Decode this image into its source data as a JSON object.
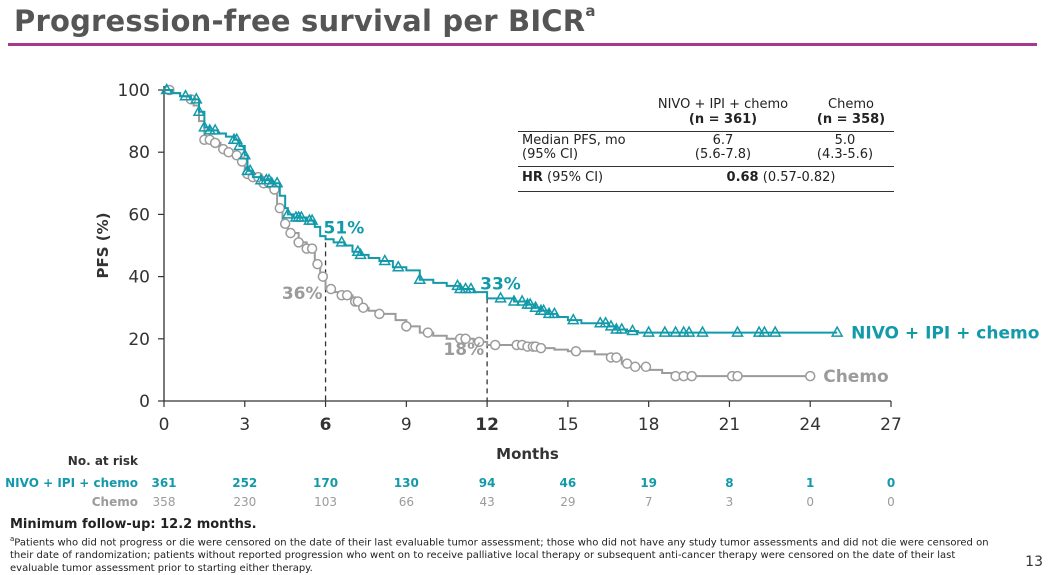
{
  "page": {
    "title": "Progression-free survival per BICR",
    "title_superscript": "a",
    "page_number": "13",
    "footer_bold": "Minimum follow-up: 12.2 months.",
    "footnote_marker": "a",
    "footnote": "Patients who did not progress or die were censored on the date of their last evaluable tumor assessment; those who did not have any study tumor assessments and did not die were censored on their date of randomization; patients without reported progression who went on to receive palliative local therapy or subsequent anti-cancer therapy were censored on the date of their last evaluable tumor assessment prior to starting either therapy.",
    "accent_color": "#a8388f"
  },
  "table": {
    "col1_header": [
      "NIVO + IPI + chemo",
      "(n = 361)"
    ],
    "col2_header": [
      "Chemo",
      "(n = 358)"
    ],
    "row1_label": [
      "Median PFS, mo",
      "(95% CI)"
    ],
    "row1_col1": [
      "6.7",
      "(5.6-7.8)"
    ],
    "row1_col2": [
      "5.0",
      "(4.3-5.6)"
    ],
    "row2_label_bold": "HR",
    "row2_label_rest": " (95% CI)",
    "row2_value_bold": "0.68",
    "row2_value_rest": " (0.57-0.82)"
  },
  "chart_data": {
    "type": "line",
    "subtype": "kaplan-meier step",
    "xlabel": "Months",
    "ylabel": "PFS (%)",
    "xlim": [
      0,
      27
    ],
    "ylim": [
      0,
      100
    ],
    "x_ticks": [
      0,
      3,
      6,
      9,
      12,
      15,
      18,
      21,
      24,
      27
    ],
    "x_ticks_bold": [
      6,
      12
    ],
    "y_ticks": [
      0,
      20,
      40,
      60,
      80,
      100
    ],
    "series": [
      {
        "name": "NIVO + IPI + chemo",
        "color": "#139aaa",
        "marker": "triangle",
        "x": [
          0,
          0.3,
          0.6,
          1.0,
          1.3,
          1.5,
          1.7,
          2.0,
          2.3,
          2.6,
          2.8,
          3.0,
          3.1,
          3.3,
          3.6,
          4.0,
          4.3,
          4.5,
          4.6,
          4.8,
          5.0,
          5.3,
          5.6,
          5.8,
          6.0,
          6.3,
          6.7,
          7.0,
          7.3,
          7.6,
          8.0,
          8.5,
          9.0,
          9.5,
          10.0,
          10.5,
          11.0,
          11.5,
          12.0,
          12.5,
          13.0,
          13.5,
          13.8,
          14.0,
          14.3,
          14.6,
          15.0,
          15.5,
          16.0,
          16.5,
          16.8,
          17.2,
          17.6,
          18.0,
          19.0,
          20.0,
          21.0,
          22.0,
          23.0,
          25.0
        ],
        "y": [
          100,
          99,
          98,
          97,
          93,
          88,
          87,
          86,
          85,
          84,
          82,
          79,
          74,
          72,
          71,
          70,
          66,
          62,
          60,
          59,
          59,
          58,
          56,
          53,
          52,
          51,
          50,
          48,
          47,
          46,
          45,
          43,
          42,
          39,
          38,
          37,
          36,
          35,
          33,
          33,
          32,
          31,
          30,
          29,
          28,
          27,
          26,
          25,
          25,
          24,
          23,
          22.5,
          22,
          22,
          22,
          22,
          22,
          22,
          22,
          22
        ],
        "censor_x": [
          0.1,
          0.8,
          1.2,
          1.3,
          1.5,
          1.7,
          1.9,
          2.6,
          2.7,
          2.8,
          3.0,
          3.1,
          3.2,
          3.6,
          3.8,
          3.9,
          4.0,
          4.2,
          4.6,
          4.9,
          5.0,
          5.1,
          5.4,
          5.5,
          6.6,
          7.2,
          7.3,
          8.2,
          8.7,
          9.5,
          10.9,
          11.0,
          11.2,
          11.4,
          12.5,
          13.0,
          13.3,
          13.5,
          13.6,
          13.8,
          14.0,
          14.1,
          14.3,
          14.5,
          15.2,
          16.2,
          16.4,
          16.6,
          16.8,
          17.0,
          17.4,
          18.0,
          18.6,
          19.0,
          19.3,
          19.5,
          20.0,
          21.3,
          22.1,
          22.3,
          22.7,
          25.0
        ],
        "landmarks": [
          {
            "x": 6,
            "y": 51,
            "label": "51%"
          },
          {
            "x": 12,
            "y": 33,
            "label": "33%"
          }
        ],
        "label": "NIVO + IPI + chemo",
        "at_risk": [
          361,
          252,
          170,
          130,
          94,
          46,
          19,
          8,
          1,
          0
        ]
      },
      {
        "name": "Chemo",
        "color": "#9b9b9b",
        "marker": "circle",
        "x": [
          0,
          0.3,
          0.6,
          0.9,
          1.1,
          1.3,
          1.5,
          1.8,
          2.1,
          2.4,
          2.6,
          2.8,
          3.0,
          3.3,
          3.7,
          4.0,
          4.2,
          4.4,
          4.6,
          5.0,
          5.3,
          5.6,
          5.8,
          6.0,
          6.3,
          6.6,
          7.0,
          7.3,
          7.6,
          8.0,
          8.6,
          9.0,
          9.5,
          10.0,
          10.5,
          11.0,
          11.5,
          12.0,
          13.0,
          13.5,
          14.0,
          14.5,
          15.0,
          16.0,
          16.5,
          17.0,
          17.5,
          18.0,
          18.5,
          19.0,
          24.0
        ],
        "y": [
          100,
          99,
          98,
          97,
          95,
          90,
          84,
          83,
          81,
          80,
          79,
          77,
          73,
          72,
          70,
          68,
          62,
          57,
          54,
          51,
          49,
          44,
          40,
          36,
          35,
          34,
          32,
          30,
          29,
          28,
          26,
          24,
          22,
          21,
          20,
          20,
          19,
          18,
          18,
          17.5,
          17,
          16.5,
          16,
          15,
          14,
          12,
          11,
          10,
          9,
          8,
          8
        ],
        "censor_x": [
          0.2,
          1.0,
          1.5,
          1.7,
          1.9,
          2.2,
          2.4,
          2.7,
          2.9,
          3.1,
          3.3,
          3.5,
          3.7,
          3.9,
          4.1,
          4.3,
          4.5,
          4.7,
          5.0,
          5.3,
          5.5,
          5.7,
          5.9,
          6.2,
          6.6,
          6.8,
          7.1,
          7.2,
          7.4,
          8.0,
          9.0,
          9.8,
          11.0,
          11.2,
          11.7,
          12.3,
          13.1,
          13.3,
          13.5,
          13.7,
          13.8,
          14.0,
          15.3,
          16.6,
          16.8,
          17.2,
          17.5,
          17.9,
          19.0,
          19.3,
          19.6,
          21.1,
          21.3,
          24.0
        ],
        "landmarks": [
          {
            "x": 6,
            "y": 36,
            "label": "36%"
          },
          {
            "x": 12,
            "y": 18,
            "label": "18%"
          }
        ],
        "label": "Chemo",
        "at_risk": [
          358,
          230,
          103,
          66,
          43,
          29,
          7,
          3,
          0,
          0
        ]
      }
    ],
    "at_risk_title": "No. at risk",
    "at_risk_months": [
      0,
      3,
      6,
      9,
      12,
      15,
      18,
      21,
      24,
      27
    ]
  }
}
